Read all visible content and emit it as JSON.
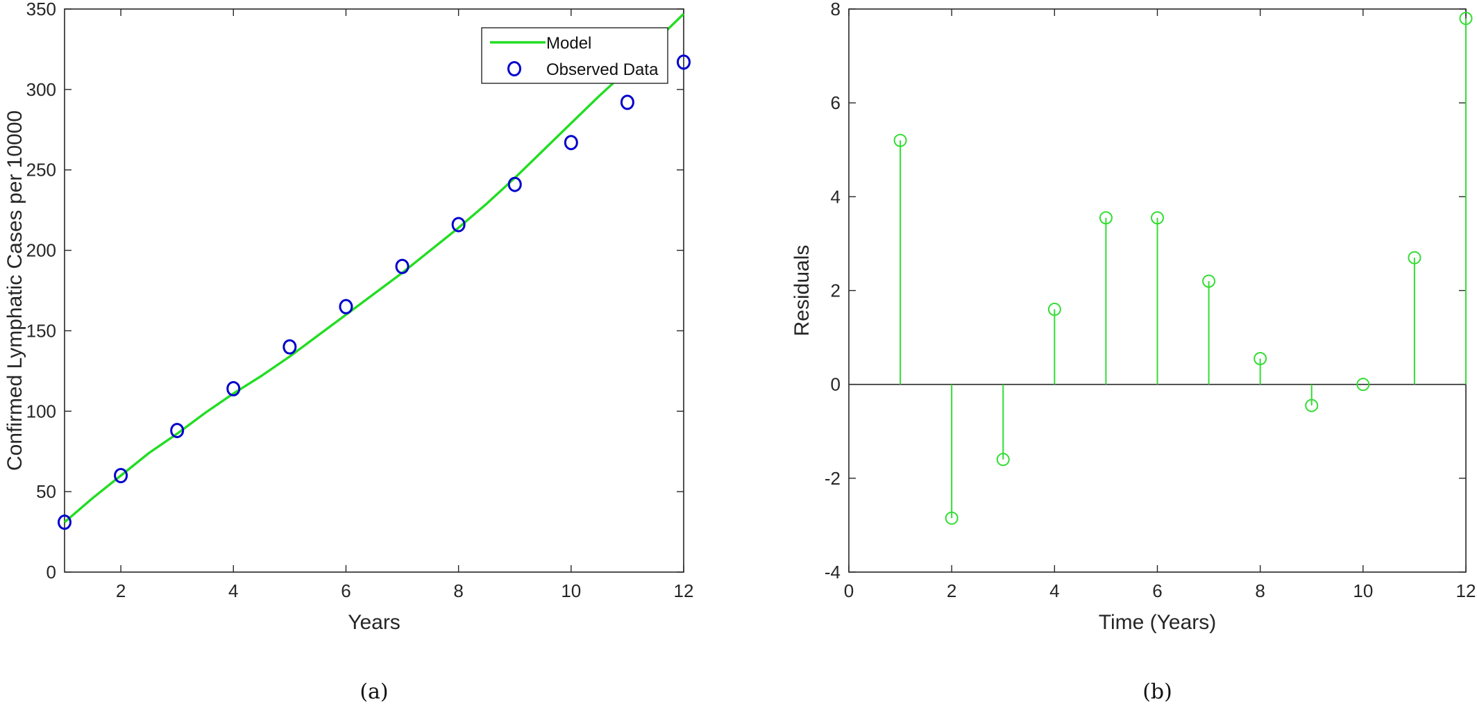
{
  "chart_data": [
    {
      "type": "line",
      "caption": "(a)",
      "xlabel": "Years",
      "ylabel": "Confirmed Lymphatic Cases per 10000",
      "xlim": [
        1,
        12
      ],
      "ylim": [
        0,
        350
      ],
      "xticks": [
        2,
        4,
        6,
        8,
        10,
        12
      ],
      "yticks": [
        0,
        50,
        100,
        150,
        200,
        250,
        300,
        350
      ],
      "grid": false,
      "legend_position": "top-right",
      "series": [
        {
          "name": "Model",
          "kind": "line",
          "color": "#22dd22",
          "x": [
            1,
            1.5,
            2,
            2.5,
            3,
            3.5,
            4,
            4.5,
            5,
            5.5,
            6,
            6.5,
            7,
            7.5,
            8,
            8.5,
            9,
            9.5,
            10,
            10.5,
            11,
            11.5,
            12
          ],
          "y": [
            31,
            46,
            60,
            74,
            86,
            99,
            111,
            122,
            134,
            147,
            160,
            173,
            186,
            200,
            214,
            229,
            245,
            262,
            279,
            296,
            312,
            330,
            347
          ]
        },
        {
          "name": "Observed Data",
          "kind": "markers",
          "color": "#0000cc",
          "x": [
            1,
            2,
            3,
            4,
            5,
            6,
            7,
            8,
            9,
            10,
            11,
            12
          ],
          "y": [
            31,
            60,
            88,
            114,
            140,
            165,
            190,
            216,
            241,
            267,
            292,
            317
          ]
        }
      ]
    },
    {
      "type": "stem",
      "caption": "(b)",
      "xlabel": "Time (Years)",
      "ylabel": "Residuals",
      "xlim": [
        0,
        12
      ],
      "ylim": [
        -4,
        8
      ],
      "xticks": [
        0,
        2,
        4,
        6,
        8,
        10,
        12
      ],
      "yticks": [
        -4,
        -2,
        0,
        2,
        4,
        6,
        8
      ],
      "grid": false,
      "series": [
        {
          "kind": "stem",
          "color": "#33dd33",
          "x": [
            1,
            2,
            3,
            4,
            5,
            6,
            7,
            8,
            9,
            10,
            11,
            12
          ],
          "y": [
            5.2,
            -2.85,
            -1.6,
            1.6,
            3.55,
            3.55,
            2.2,
            0.55,
            -0.45,
            0.0,
            2.7,
            7.8
          ]
        }
      ]
    }
  ]
}
